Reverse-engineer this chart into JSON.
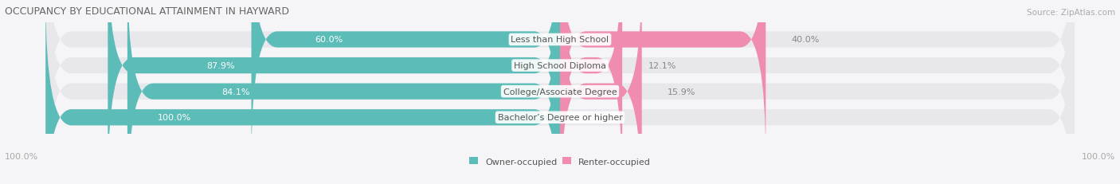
{
  "title": "OCCUPANCY BY EDUCATIONAL ATTAINMENT IN HAYWARD",
  "source": "Source: ZipAtlas.com",
  "categories": [
    "Less than High School",
    "High School Diploma",
    "College/Associate Degree",
    "Bachelor’s Degree or higher"
  ],
  "owner_values": [
    60.0,
    87.9,
    84.1,
    100.0
  ],
  "renter_values": [
    40.0,
    12.1,
    15.9,
    0.0
  ],
  "owner_color": "#5bbcb8",
  "renter_color": "#f08cb0",
  "bar_bg_color": "#e8e8ec",
  "bg_color": "#f5f5f8",
  "title_color": "#666666",
  "category_label_color": "#555555",
  "value_label_color_owner": "#ffffff",
  "value_label_color_renter": "#888888",
  "bar_height": 0.62,
  "figsize": [
    14.06,
    2.32
  ],
  "dpi": 100,
  "legend_labels": [
    "Owner-occupied",
    "Renter-occupied"
  ],
  "x_tick_label": "100.0%"
}
